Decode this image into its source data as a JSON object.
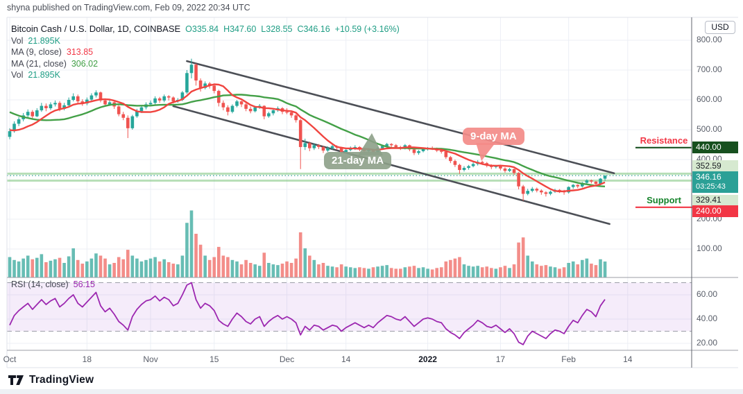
{
  "header": {
    "published_line": "shyna published on TradingView.com, Feb 09, 2022 20:34 UTC"
  },
  "legend": {
    "title": "Bitcoin Cash / U.S. Dollar, 1D, COINBASE",
    "o": "O335.84",
    "h": "H347.60",
    "l": "L328.55",
    "c": "C346.16",
    "change": "+10.59 (+3.16%)",
    "vol_label": "Vol",
    "vol_value": "21.895K",
    "ma9_label": "MA (9, close)",
    "ma9_value": "313.85",
    "ma21_label": "MA (21, close)",
    "ma21_value": "306.02",
    "vol2_label": "Vol",
    "vol2_value": "21.895K",
    "rsi_label": "RSI (14, close)",
    "rsi_value": "56.15"
  },
  "price_axis": {
    "currency": "USD",
    "badges": {
      "resistance": "440.00",
      "band_high": "352.59",
      "last": "346.16",
      "countdown": "03:25:43",
      "band_low": "329.41",
      "support": "240.00"
    }
  },
  "annotations": {
    "resistance_label": "Resistance",
    "support_label": "Support",
    "ma9_bubble": "9-day MA",
    "ma21_bubble": "21-day MA"
  },
  "footer": {
    "brand": "TradingView"
  },
  "colors": {
    "up": "#26a69a",
    "down": "#ef5350",
    "vol_up": "#56b6ac",
    "vol_down": "#f2817c",
    "ma9": "#f0443f",
    "ma21": "#43a047",
    "channel": "#4c4f56",
    "resistance_line": "#17501f",
    "support_line": "#f23645",
    "last_dotted": "#2d9e8f",
    "band_line": "#7cc47b",
    "rsi_line": "#9c27b0",
    "grid": "#eceff5"
  },
  "chart_data": {
    "type": "candlestick",
    "title": "Bitcoin Cash / U.S. Dollar, 1D, COINBASE",
    "symbol": "BCH/USD",
    "interval": "1D",
    "exchange": "COINBASE",
    "last": {
      "open": 335.84,
      "high": 347.6,
      "low": 328.55,
      "close": 346.16,
      "change": 10.59,
      "change_pct": 3.16,
      "volume_k": 21.895
    },
    "ma9": 313.85,
    "ma21": 306.02,
    "rsi14": 56.15,
    "price_axis_ticks": [
      800,
      700,
      600,
      500,
      400,
      300,
      200,
      100
    ],
    "rsi_axis_ticks": [
      60,
      40,
      20
    ],
    "rsi_bands": [
      70,
      30
    ],
    "time_ticks": [
      {
        "label": "Oct",
        "i": 0
      },
      {
        "label": "18",
        "i": 17
      },
      {
        "label": "Nov",
        "i": 31
      },
      {
        "label": "15",
        "i": 45
      },
      {
        "label": "Dec",
        "i": 61
      },
      {
        "label": "14",
        "i": 74
      },
      {
        "label": "2022",
        "i": 92,
        "bold": true
      },
      {
        "label": "17",
        "i": 108
      },
      {
        "label": "Feb",
        "i": 123
      },
      {
        "label": "14",
        "i": 136
      }
    ],
    "levels": {
      "resistance": 440.0,
      "support": 240.0,
      "band_high": 352.59,
      "band_low": 329.41,
      "last_price": 346.16
    },
    "channel": {
      "upper": {
        "i1": 39,
        "p1": 730,
        "i2": 133,
        "p2": 354
      },
      "lower": {
        "i1": 36,
        "p1": 579,
        "i2": 132,
        "p2": 184
      }
    },
    "ma_warmup_closes": [
      660,
      650,
      640,
      630,
      620,
      610,
      600,
      590,
      580,
      570,
      560,
      545,
      530,
      515,
      505,
      498,
      492,
      488,
      484,
      480
    ],
    "candles_format": [
      "open",
      "high",
      "low",
      "close",
      "volume_K"
    ],
    "candles": [
      [
        476,
        505,
        468,
        495,
        28
      ],
      [
        495,
        528,
        490,
        520,
        24
      ],
      [
        520,
        542,
        512,
        535,
        22
      ],
      [
        535,
        556,
        528,
        548,
        26
      ],
      [
        548,
        568,
        540,
        560,
        30
      ],
      [
        560,
        566,
        536,
        545,
        25
      ],
      [
        545,
        572,
        542,
        565,
        27
      ],
      [
        565,
        590,
        560,
        580,
        32
      ],
      [
        580,
        588,
        562,
        572,
        21
      ],
      [
        572,
        592,
        566,
        585,
        23
      ],
      [
        585,
        598,
        578,
        590,
        25
      ],
      [
        590,
        596,
        562,
        570,
        27
      ],
      [
        570,
        590,
        565,
        582,
        20
      ],
      [
        582,
        608,
        578,
        600,
        29
      ],
      [
        600,
        622,
        595,
        612,
        40
      ],
      [
        612,
        618,
        588,
        595,
        24
      ],
      [
        595,
        602,
        580,
        588,
        19
      ],
      [
        588,
        608,
        582,
        601,
        22
      ],
      [
        601,
        622,
        596,
        615,
        26
      ],
      [
        615,
        632,
        608,
        625,
        33
      ],
      [
        625,
        628,
        592,
        598,
        30
      ],
      [
        598,
        605,
        578,
        585,
        26
      ],
      [
        585,
        600,
        580,
        592,
        18
      ],
      [
        592,
        596,
        570,
        578,
        20
      ],
      [
        578,
        582,
        545,
        552,
        28
      ],
      [
        552,
        560,
        532,
        540,
        25
      ],
      [
        540,
        548,
        472,
        505,
        38
      ],
      [
        505,
        550,
        500,
        545,
        30
      ],
      [
        545,
        570,
        540,
        562,
        26
      ],
      [
        562,
        580,
        556,
        575,
        22
      ],
      [
        575,
        592,
        568,
        585,
        24
      ],
      [
        585,
        598,
        578,
        590,
        26
      ],
      [
        590,
        612,
        585,
        605,
        28
      ],
      [
        605,
        610,
        590,
        598,
        22
      ],
      [
        598,
        618,
        592,
        612,
        25
      ],
      [
        612,
        616,
        598,
        608,
        21
      ],
      [
        608,
        612,
        588,
        595,
        19
      ],
      [
        595,
        606,
        590,
        600,
        18
      ],
      [
        600,
        630,
        596,
        625,
        30
      ],
      [
        625,
        700,
        620,
        690,
        75
      ],
      [
        690,
        738,
        672,
        718,
        92
      ],
      [
        718,
        722,
        648,
        665,
        60
      ],
      [
        665,
        672,
        628,
        640,
        45
      ],
      [
        640,
        662,
        635,
        655,
        30
      ],
      [
        655,
        660,
        638,
        648,
        24
      ],
      [
        648,
        652,
        622,
        630,
        28
      ],
      [
        630,
        634,
        578,
        590,
        42
      ],
      [
        590,
        598,
        565,
        575,
        30
      ],
      [
        575,
        582,
        548,
        560,
        28
      ],
      [
        560,
        585,
        555,
        580,
        24
      ],
      [
        580,
        600,
        575,
        595,
        22
      ],
      [
        595,
        598,
        576,
        585,
        18
      ],
      [
        585,
        590,
        562,
        570,
        24
      ],
      [
        570,
        578,
        555,
        562,
        20
      ],
      [
        562,
        580,
        558,
        575,
        18
      ],
      [
        575,
        586,
        570,
        580,
        16
      ],
      [
        580,
        582,
        535,
        545,
        34
      ],
      [
        545,
        560,
        540,
        555,
        20
      ],
      [
        555,
        570,
        548,
        565,
        18
      ],
      [
        565,
        578,
        560,
        572,
        17
      ],
      [
        572,
        576,
        552,
        560,
        19
      ],
      [
        560,
        572,
        552,
        558,
        22
      ],
      [
        558,
        562,
        540,
        548,
        20
      ],
      [
        548,
        552,
        524,
        532,
        26
      ],
      [
        532,
        536,
        368,
        442,
        62
      ],
      [
        442,
        470,
        432,
        455,
        40
      ],
      [
        455,
        460,
        428,
        438,
        30
      ],
      [
        438,
        455,
        432,
        448,
        24
      ],
      [
        448,
        452,
        435,
        442,
        18
      ],
      [
        442,
        446,
        422,
        430,
        20
      ],
      [
        430,
        444,
        426,
        438,
        16
      ],
      [
        438,
        452,
        434,
        445,
        15
      ],
      [
        445,
        448,
        432,
        440,
        14
      ],
      [
        440,
        442,
        418,
        425,
        18
      ],
      [
        425,
        438,
        420,
        432,
        15
      ],
      [
        432,
        444,
        428,
        438,
        14
      ],
      [
        438,
        448,
        432,
        442,
        13
      ],
      [
        442,
        445,
        428,
        435,
        14
      ],
      [
        435,
        440,
        422,
        428,
        13
      ],
      [
        428,
        438,
        424,
        432,
        12
      ],
      [
        432,
        436,
        418,
        425,
        14
      ],
      [
        425,
        442,
        421,
        438,
        15
      ],
      [
        438,
        450,
        434,
        445,
        16
      ],
      [
        445,
        456,
        440,
        452,
        17
      ],
      [
        452,
        455,
        440,
        448,
        13
      ],
      [
        448,
        452,
        436,
        442,
        12
      ],
      [
        442,
        446,
        432,
        438,
        12
      ],
      [
        438,
        452,
        434,
        448,
        14
      ],
      [
        448,
        450,
        428,
        434,
        15
      ],
      [
        434,
        438,
        415,
        422,
        16
      ],
      [
        422,
        432,
        416,
        428,
        13
      ],
      [
        428,
        440,
        424,
        435,
        14
      ],
      [
        435,
        442,
        430,
        438,
        12
      ],
      [
        438,
        444,
        432,
        436,
        11
      ],
      [
        436,
        440,
        425,
        430,
        13
      ],
      [
        430,
        434,
        420,
        426,
        14
      ],
      [
        426,
        430,
        402,
        408,
        22
      ],
      [
        408,
        412,
        388,
        395,
        24
      ],
      [
        395,
        400,
        375,
        382,
        26
      ],
      [
        382,
        386,
        352,
        365,
        28
      ],
      [
        365,
        378,
        360,
        372,
        18
      ],
      [
        372,
        382,
        366,
        378,
        16
      ],
      [
        378,
        390,
        374,
        385,
        15
      ],
      [
        385,
        398,
        380,
        392,
        16
      ],
      [
        392,
        396,
        382,
        388,
        14
      ],
      [
        388,
        392,
        374,
        380,
        15
      ],
      [
        380,
        384,
        368,
        375,
        13
      ],
      [
        375,
        382,
        370,
        378,
        12
      ],
      [
        378,
        380,
        364,
        370,
        14
      ],
      [
        370,
        374,
        356,
        362,
        16
      ],
      [
        362,
        372,
        358,
        368,
        13
      ],
      [
        368,
        370,
        348,
        355,
        18
      ],
      [
        355,
        358,
        300,
        310,
        48
      ],
      [
        310,
        315,
        262,
        285,
        55
      ],
      [
        285,
        302,
        280,
        295,
        30
      ],
      [
        295,
        308,
        290,
        302,
        22
      ],
      [
        302,
        306,
        290,
        296,
        18
      ],
      [
        296,
        300,
        282,
        290,
        16
      ],
      [
        290,
        294,
        276,
        285,
        17
      ],
      [
        285,
        296,
        280,
        292,
        15
      ],
      [
        292,
        302,
        288,
        298,
        14
      ],
      [
        298,
        301,
        288,
        295,
        12
      ],
      [
        295,
        298,
        282,
        290,
        14
      ],
      [
        290,
        310,
        286,
        308,
        20
      ],
      [
        308,
        318,
        302,
        315,
        22
      ],
      [
        315,
        317,
        304,
        310,
        18
      ],
      [
        310,
        325,
        306,
        322,
        24
      ],
      [
        322,
        334,
        318,
        330,
        26
      ],
      [
        330,
        333,
        320,
        326,
        19
      ],
      [
        326,
        328,
        312,
        318,
        17
      ],
      [
        318,
        338,
        314,
        336,
        25
      ],
      [
        335.84,
        347.6,
        328.55,
        346.16,
        21.895
      ]
    ],
    "rsi_series": [
      35,
      43,
      47,
      50,
      53,
      48,
      52,
      56,
      52,
      55,
      57,
      50,
      53,
      57,
      60,
      53,
      50,
      54,
      58,
      62,
      51,
      46,
      49,
      44,
      38,
      35,
      31,
      42,
      48,
      52,
      55,
      56,
      59,
      55,
      58,
      56,
      51,
      53,
      60,
      68,
      70,
      56,
      49,
      53,
      51,
      47,
      39,
      36,
      34,
      40,
      45,
      42,
      38,
      36,
      40,
      42,
      34,
      38,
      41,
      43,
      40,
      42,
      40,
      37,
      27,
      34,
      31,
      35,
      34,
      31,
      33,
      35,
      34,
      30,
      33,
      35,
      37,
      35,
      33,
      35,
      33,
      37,
      40,
      43,
      42,
      40,
      39,
      42,
      38,
      34,
      37,
      40,
      41,
      40,
      38,
      37,
      32,
      29,
      27,
      24,
      29,
      32,
      35,
      39,
      37,
      34,
      33,
      35,
      32,
      29,
      32,
      28,
      21,
      19,
      26,
      30,
      28,
      26,
      24,
      28,
      31,
      30,
      28,
      34,
      39,
      37,
      43,
      48,
      46,
      42,
      51,
      56.15
    ]
  }
}
